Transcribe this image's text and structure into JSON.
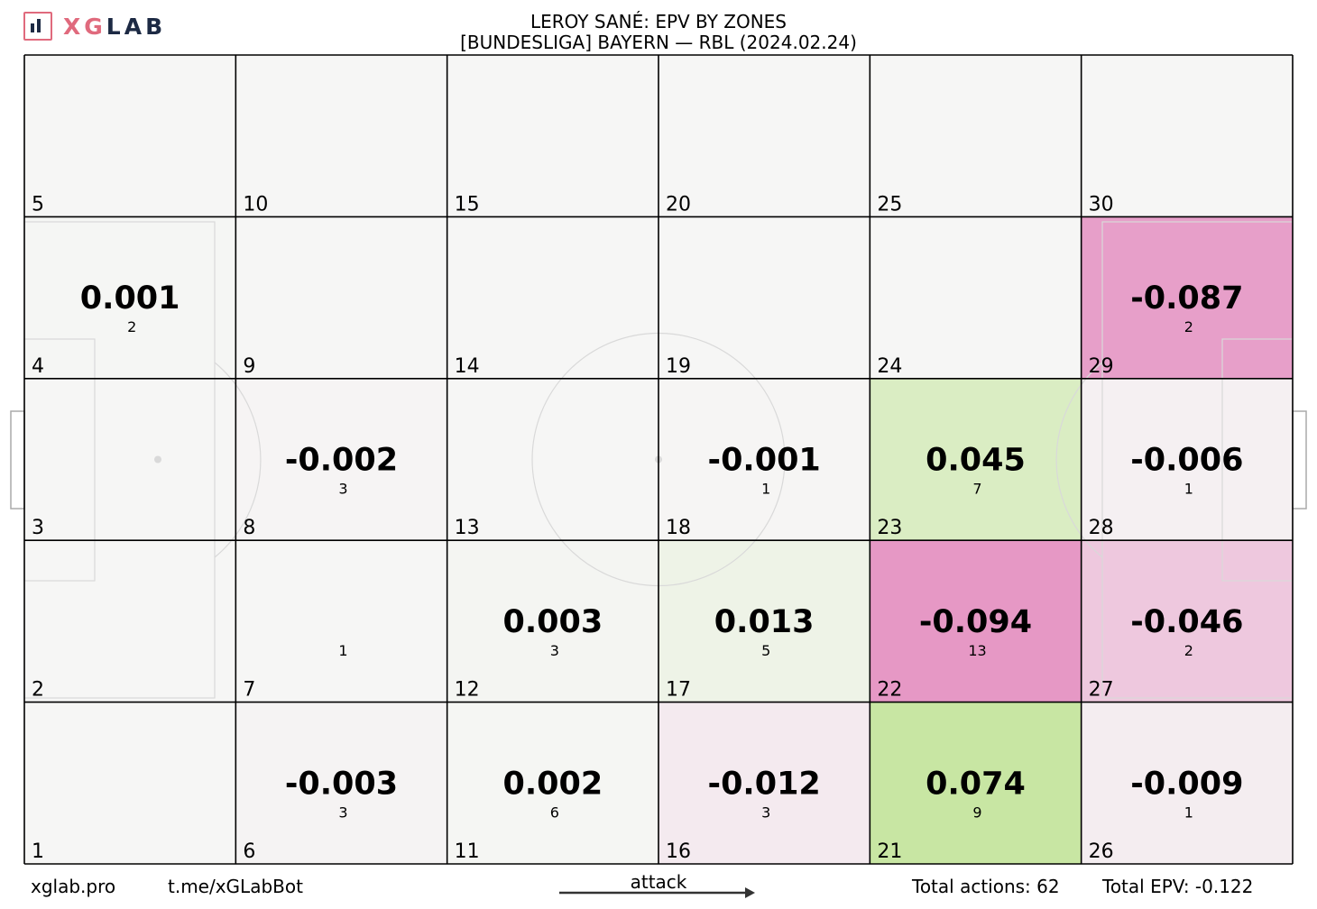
{
  "header": {
    "logo_text_a": "XG",
    "logo_text_b": "LAB",
    "title": "LEROY SANÉ: EPV BY ZONES",
    "subtitle": "[BUNDESLIGA] BAYERN —  RBL (2024.02.24)"
  },
  "footer": {
    "site": "xglab.pro",
    "bot": "t.me/xGLabBot",
    "attack_label": "attack",
    "total_actions": "Total actions: 62",
    "total_epv": "Total EPV: -0.122"
  },
  "colors": {
    "neutral": "#f6f6f5",
    "positive_max": "#b8e186",
    "negative_max": "#e592c2",
    "grid_line": "#000000",
    "pitch_line": "#d9d9d9"
  },
  "chart_data": {
    "type": "heatmap",
    "title": "LEROY SANÉ: EPV BY ZONES",
    "subtitle": "[BUNDESLIGA] BAYERN —  RBL (2024.02.24)",
    "grid": {
      "columns": 6,
      "rows": 5,
      "numbering": "bottom-to-top, left-to-right"
    },
    "zones": [
      {
        "zone": 1,
        "epv": null,
        "count": null
      },
      {
        "zone": 2,
        "epv": null,
        "count": null
      },
      {
        "zone": 3,
        "epv": null,
        "count": null
      },
      {
        "zone": 4,
        "epv": 0.001,
        "count": 2
      },
      {
        "zone": 5,
        "epv": null,
        "count": null
      },
      {
        "zone": 6,
        "epv": -0.003,
        "count": 3
      },
      {
        "zone": 7,
        "epv": null,
        "count": 1
      },
      {
        "zone": 8,
        "epv": -0.002,
        "count": 3
      },
      {
        "zone": 9,
        "epv": null,
        "count": null
      },
      {
        "zone": 10,
        "epv": null,
        "count": null
      },
      {
        "zone": 11,
        "epv": 0.002,
        "count": 6
      },
      {
        "zone": 12,
        "epv": 0.003,
        "count": 3
      },
      {
        "zone": 13,
        "epv": null,
        "count": null
      },
      {
        "zone": 14,
        "epv": null,
        "count": null
      },
      {
        "zone": 15,
        "epv": null,
        "count": null
      },
      {
        "zone": 16,
        "epv": -0.012,
        "count": 3
      },
      {
        "zone": 17,
        "epv": 0.013,
        "count": 5
      },
      {
        "zone": 18,
        "epv": -0.001,
        "count": 1
      },
      {
        "zone": 19,
        "epv": null,
        "count": null
      },
      {
        "zone": 20,
        "epv": null,
        "count": null
      },
      {
        "zone": 21,
        "epv": 0.074,
        "count": 9
      },
      {
        "zone": 22,
        "epv": -0.094,
        "count": 13
      },
      {
        "zone": 23,
        "epv": 0.045,
        "count": 7
      },
      {
        "zone": 24,
        "epv": null,
        "count": null
      },
      {
        "zone": 25,
        "epv": null,
        "count": null
      },
      {
        "zone": 26,
        "epv": -0.009,
        "count": 1
      },
      {
        "zone": 27,
        "epv": -0.046,
        "count": 2
      },
      {
        "zone": 28,
        "epv": -0.006,
        "count": 1
      },
      {
        "zone": 29,
        "epv": -0.087,
        "count": 2
      },
      {
        "zone": 30,
        "epv": null,
        "count": null
      }
    ],
    "total_actions": 62,
    "total_epv": -0.122,
    "direction": "left-to-right"
  }
}
